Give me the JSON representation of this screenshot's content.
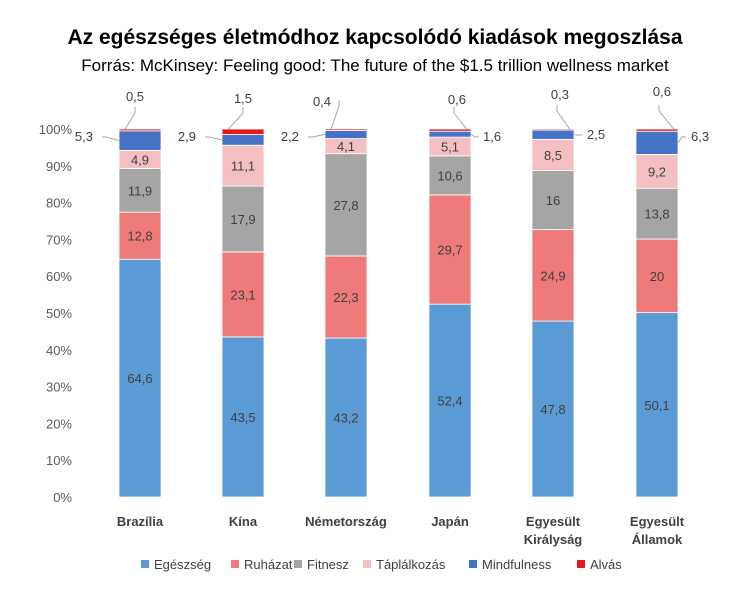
{
  "chart_data": {
    "type": "bar",
    "stacked": true,
    "percent": true,
    "title": "Az egészséges életmódhoz kapcsolódó kiadások megoszlása",
    "subtitle": "Forrás: McKinsey: Feeling good: The future of the $1.5 trillion wellness market",
    "categories": [
      [
        "Brazília"
      ],
      [
        "Kína"
      ],
      [
        "Németország"
      ],
      [
        "Japán"
      ],
      [
        "Egyesült",
        "Királyság"
      ],
      [
        "Egyesült",
        "Államok"
      ]
    ],
    "y_ticks": [
      "0%",
      "10%",
      "20%",
      "30%",
      "40%",
      "50%",
      "60%",
      "70%",
      "80%",
      "90%",
      "100%"
    ],
    "ylim": [
      0,
      100
    ],
    "legend_position": "bottom",
    "series": [
      {
        "name": "Egészség",
        "color": "#5B9BD5",
        "label_color": "#404040",
        "values": [
          64.6,
          43.5,
          43.2,
          52.4,
          47.8,
          50.1
        ],
        "labels": [
          "64,6",
          "43,5",
          "43,2",
          "52,4",
          "47,8",
          "50,1"
        ]
      },
      {
        "name": "Ruházat",
        "color": "#EE7A7A",
        "label_color": "#404040",
        "values": [
          12.8,
          23.1,
          22.3,
          29.7,
          24.9,
          20
        ],
        "labels": [
          "12,8",
          "23,1",
          "22,3",
          "29,7",
          "24,9",
          "20"
        ]
      },
      {
        "name": "Fitnesz",
        "color": "#A5A5A5",
        "label_color": "#404040",
        "values": [
          11.9,
          17.9,
          27.8,
          10.6,
          16,
          13.8
        ],
        "labels": [
          "11,9",
          "17,9",
          "27,8",
          "10,6",
          "16",
          "13,8"
        ]
      },
      {
        "name": "Táplálkozás",
        "color": "#F4BFC3",
        "label_color": "#404040",
        "values": [
          4.9,
          11.1,
          4.1,
          5.1,
          8.5,
          9.2
        ],
        "labels": [
          "4,9",
          "11,1",
          "4,1",
          "5,1",
          "8,5",
          "9,2"
        ]
      },
      {
        "name": "Mindfulness",
        "color": "#4472C4",
        "label_color": "#404040",
        "values": [
          5.3,
          2.9,
          2.2,
          1.6,
          2.5,
          6.3
        ],
        "labels": [
          "5,3",
          "2,9",
          "2,2",
          "1,6",
          "2,5",
          "6,3"
        ]
      },
      {
        "name": "Alvás",
        "color": "#E31A1C",
        "label_color": "#404040",
        "values": [
          0.5,
          1.5,
          0.4,
          0.6,
          0.3,
          0.6
        ],
        "labels": [
          "0,5",
          "1,5",
          "0,4",
          "0,6",
          "0,3",
          "0,6"
        ]
      }
    ]
  }
}
